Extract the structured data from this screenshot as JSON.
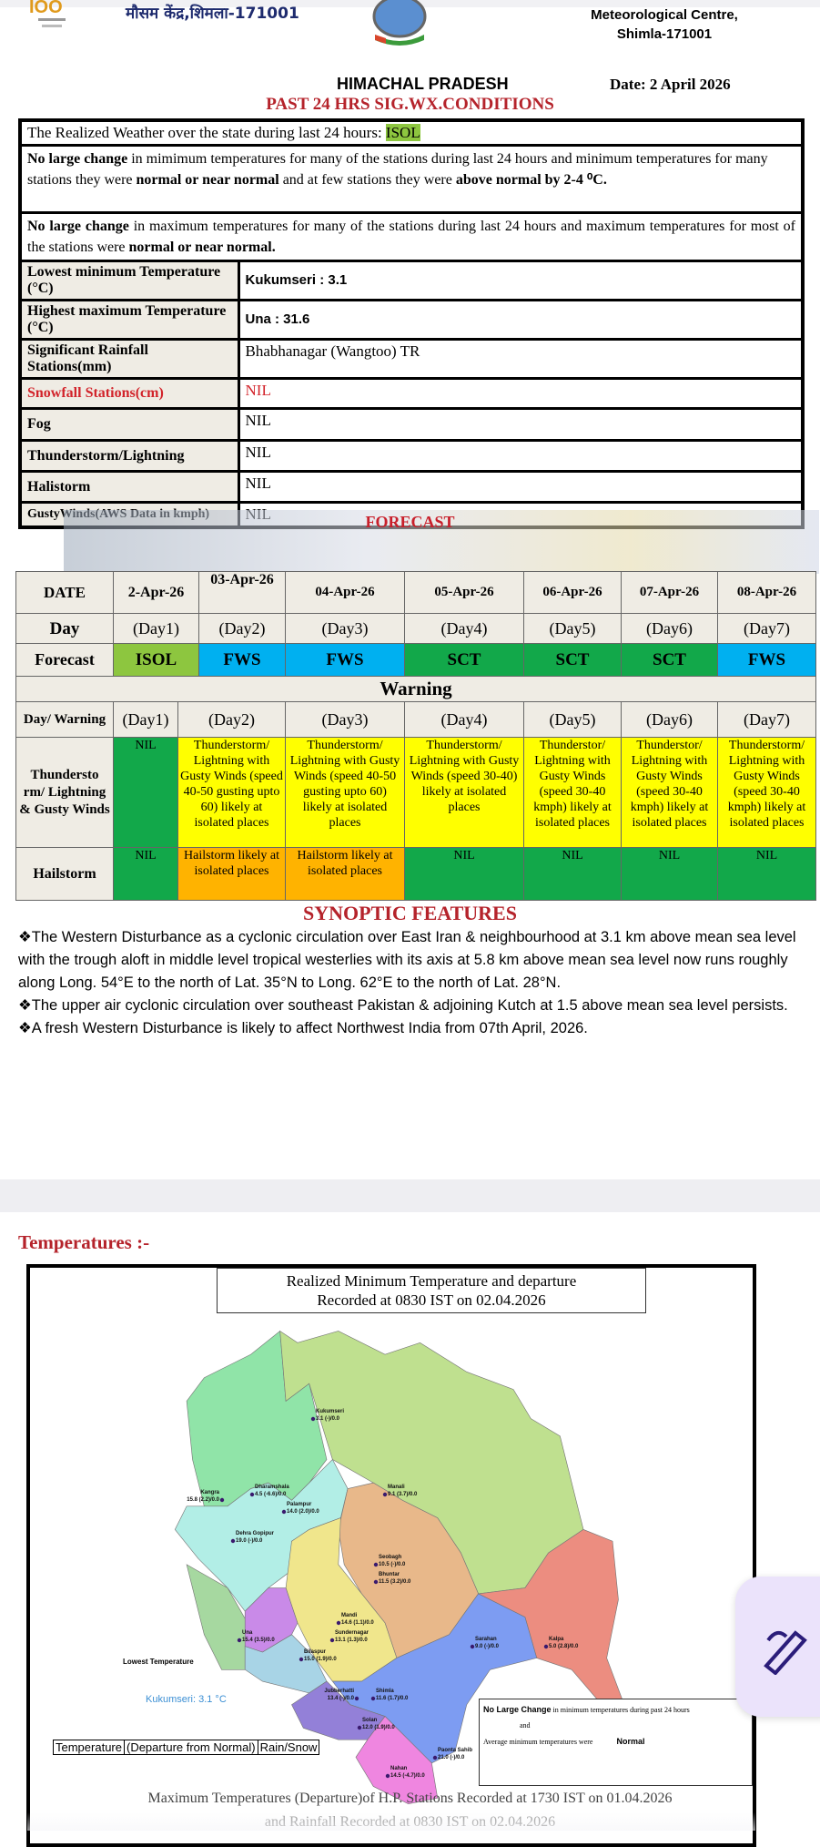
{
  "header": {
    "hindi_title": "मौसम केंद्र,शिमला-171001",
    "centre_line1": "Meteorological Centre,",
    "centre_line2": "Shimla-171001",
    "state": "HIMACHAL PRADESH",
    "date": "Date: 2 April 2026",
    "sig_title": "PAST 24 HRS SIG.WX.CONDITIONS"
  },
  "sig_table": {
    "realized_prefix": "The Realized Weather over the state during last 24 hours: ",
    "realized_value": "ISOL",
    "min_bold": "No large change",
    "min_text1": " in mimimum temperatures for many of the stations during last 24 hours and minimum temperatures for many stations they were ",
    "min_bold2": "normal or near normal",
    "min_text2": " and at few stations they were ",
    "min_bold3": "above normal by 2-4 ⁰C.",
    "max_bold": "No large change",
    "max_text1": " in maximum temperatures for many of the stations during last 24 hours and maximum temperatures for most of the stations were ",
    "max_bold2": "normal or near normal.",
    "rows": [
      {
        "label": "Lowest minimum Temperature (°C)",
        "value": "Kukumseri  :  3.1"
      },
      {
        "label": "Highest maximum Temperature (°C)",
        "value": "Una :  31.6"
      },
      {
        "label": "Significant Rainfall Stations(mm)",
        "value": "Bhabhanagar (Wangtoo) TR"
      },
      {
        "label": "Snowfall Stations(cm)",
        "value": "NIL"
      },
      {
        "label": "Fog",
        "value": "NIL"
      },
      {
        "label": "Thunderstorm/Lightning",
        "value": "NIL"
      },
      {
        "label": "Halistorm",
        "value": "NIL"
      },
      {
        "label": "GustyWinds(AWS Data in kmph)",
        "value": "NIL"
      }
    ]
  },
  "forecast": {
    "title": "FORECAST",
    "date_label": "DATE",
    "day_label": "Day",
    "forecast_label": "Forecast",
    "warning_title": "Warning",
    "day_warning_label": "Day/ Warning",
    "thunder_label": "Thundersto rm/ Lightning & Gusty Winds",
    "hail_label": "Hailstorm",
    "dates": [
      "2-Apr-26",
      "03-Apr-26",
      "04-Apr-26",
      "05-Apr-26",
      "06-Apr-26",
      "07-Apr-26",
      "08-Apr-26"
    ],
    "days": [
      "(Day1)",
      "(Day2)",
      "(Day3)",
      "(Day4)",
      "(Day5)",
      "(Day6)",
      "(Day7)"
    ],
    "forecasts": [
      "ISOL",
      "FWS",
      "FWS",
      "SCT",
      "SCT",
      "SCT",
      "FWS"
    ],
    "thunder": [
      "NIL",
      "Thunderstorm/ Lightning with Gusty Winds (speed 40-50 gusting upto 60) likely at isolated places",
      "Thunderstorm/ Lightning with Gusty Winds (speed 40-50 gusting upto 60) likely at isolated places",
      "Thunderstorm/ Lightning with Gusty Winds (speed 30-40) likely at isolated places",
      "Thunderstor/ Lightning with Gusty Winds (speed 30-40 kmph) likely at isolated places",
      "Thunderstor/ Lightning with Gusty Winds (speed 30-40 kmph) likely at isolated places",
      "Thunderstorm/ Lightning with Gusty Winds (speed 30-40 kmph) likely at isolated places"
    ],
    "hail": [
      "NIL",
      "Hailstorm likely at isolated places",
      "Hailstorm likely at isolated places",
      "NIL",
      "NIL",
      "NIL",
      "NIL"
    ],
    "colors": {
      "isol": "#8dc63f",
      "fws": "#00b0f0",
      "sct": "#12a84a",
      "yellow": "#ffff00",
      "orange": "#ffb300",
      "green": "#12a84a"
    }
  },
  "synoptic": {
    "title": "SYNOPTIC FEATURES",
    "items": [
      "❖The Western Disturbance as a cyclonic circulation over East Iran & neighbourhood at 3.1 km above mean sea level with the trough aloft in middle level tropical westerlies with its axis at 5.8 km above mean sea level now runs roughly along Long. 54°E to the north of Lat. 35°N to Long. 62°E to the north of Lat. 28°N.",
      "❖The upper air cyclonic circulation over southeast Pakistan & adjoining Kutch at 1.5 above mean sea level persists.",
      "❖A fresh Western Disturbance is likely to affect Northwest India from 07th April, 2026."
    ]
  },
  "temperatures": {
    "heading": "Temperatures :-",
    "map_title1": "Realized Minimum Temperature and departure",
    "map_title2": "Recorded at 0830 IST on 02.04.2026",
    "lowest_label": "Lowest Temperature",
    "lowest_value": "Kukumseri: 3.1 °C",
    "key": [
      "Temperature",
      "(Departure from Normal)",
      "Rain/Snow"
    ],
    "legend": {
      "bold": "No Large Change",
      "text": " in minimum temperatures during past 24 hours",
      "and": "and",
      "avg": "Average minimum temperatures were",
      "normal": "Normal"
    },
    "stations": [
      {
        "name": "Kukumseri",
        "value": "3.1 (-)/0.0"
      },
      {
        "name": "Dharamshala",
        "value": "4.5 (-6.6)/0.0"
      },
      {
        "name": "Kangra",
        "value": "15.8 (2.2)/0.0"
      },
      {
        "name": "Palampur",
        "value": "14.0 (2.0)/0.0"
      },
      {
        "name": "Dehra Gopipur",
        "value": "19.0 (-)/0.0"
      },
      {
        "name": "Manali",
        "value": "9.1 (3.7)/0.0"
      },
      {
        "name": "Seobagh",
        "value": "10.5 (-)/0.0"
      },
      {
        "name": "Bhuntar",
        "value": "11.5 (3.2)/0.0"
      },
      {
        "name": "Mandi",
        "value": "14.6 (1.1)/0.0"
      },
      {
        "name": "Sundernagar",
        "value": "13.1 (1.3)/0.0"
      },
      {
        "name": "Una",
        "value": "15.4 (3.5)/0.0"
      },
      {
        "name": "Bilaspur",
        "value": "15.0 (1.9)/0.0"
      },
      {
        "name": "Sarahan",
        "value": "9.0 (-)/0.0"
      },
      {
        "name": "Kalpa",
        "value": "5.0 (2.8)/0.0"
      },
      {
        "name": "Jubberhatti",
        "value": "13.4 (-)/0.0"
      },
      {
        "name": "Shimla",
        "value": "11.6 (1.7)/0.0"
      },
      {
        "name": "Solan",
        "value": "12.0 (1.9)/0.0"
      },
      {
        "name": "Nahan",
        "value": "14.5 (-4.7)/0.0"
      },
      {
        "name": "Paonta Sahib",
        "value": "21.0 (-)/0.0"
      }
    ],
    "next_title1": "Maximum Temperatures (Departure)of H.P. Stations Recorded at 1730 IST on 01.04.2026",
    "next_title2": "and Rainfall Recorded at 0830 IST on 02.04.2026"
  }
}
